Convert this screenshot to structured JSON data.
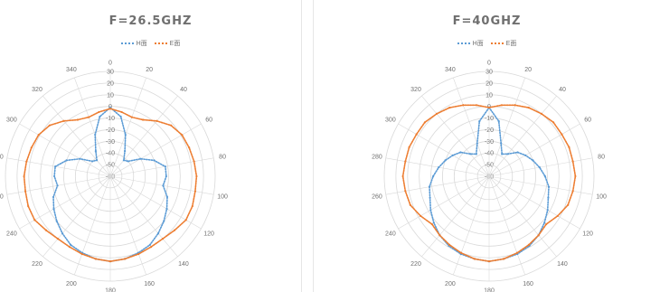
{
  "colors": {
    "h_plane": "#5b9bd5",
    "e_plane": "#ed7d31",
    "grid": "#d9d9d9",
    "text": "#707070"
  },
  "chart_data": [
    {
      "type": "polar-line",
      "title": "F=26.5GHZ",
      "legend_position": "top",
      "radial_ticks": [
        "30",
        "20",
        "10",
        "0",
        "-10",
        "-20",
        "-30",
        "-40",
        "-50",
        "-60"
      ],
      "rlim": [
        -60,
        30
      ],
      "angle_ticks": [
        "0",
        "20",
        "40",
        "60",
        "80",
        "100",
        "120",
        "140",
        "160",
        "180",
        "200",
        "220",
        "240",
        "260",
        "280",
        "300",
        "320",
        "340"
      ],
      "angles": [
        0,
        10,
        20,
        30,
        40,
        50,
        60,
        70,
        80,
        90,
        100,
        110,
        120,
        130,
        140,
        150,
        160,
        170,
        180,
        190,
        200,
        210,
        220,
        230,
        240,
        250,
        260,
        270,
        280,
        290,
        300,
        310,
        320,
        330,
        340,
        350
      ],
      "series": [
        {
          "name": "H面",
          "color": "#5b9bd5",
          "values": [
            -1,
            -8,
            -22,
            -35,
            -42,
            -40,
            -30,
            -20,
            -12,
            -12,
            -14,
            -8,
            -4,
            0,
            4,
            8,
            10,
            12,
            13,
            12,
            10,
            8,
            4,
            0,
            -4,
            -8,
            -14,
            -12,
            -12,
            -20,
            -30,
            -40,
            -42,
            -35,
            -22,
            -8
          ]
        },
        {
          "name": "E面",
          "color": "#ed7d31",
          "values": [
            -2,
            -4,
            -6,
            -4,
            2,
            8,
            11,
            12,
            13,
            14,
            14,
            15,
            15,
            12,
            10,
            10,
            11,
            12,
            13,
            12,
            11,
            10,
            10,
            12,
            15,
            15,
            14,
            14,
            13,
            12,
            11,
            8,
            2,
            -4,
            -6,
            -4
          ]
        }
      ]
    },
    {
      "type": "polar-line",
      "title": "F=40GHZ",
      "legend_position": "top",
      "radial_ticks": [
        "30",
        "20",
        "10",
        "0",
        "-10",
        "-20",
        "-30",
        "-40",
        "-50",
        "-60"
      ],
      "rlim": [
        -60,
        30
      ],
      "angle_ticks": [
        "0",
        "20",
        "40",
        "60",
        "80",
        "100",
        "120",
        "140",
        "160",
        "180",
        "200",
        "220",
        "240",
        "260",
        "280",
        "300",
        "320",
        "340"
      ],
      "angles": [
        0,
        10,
        20,
        30,
        40,
        50,
        60,
        70,
        80,
        90,
        100,
        110,
        120,
        130,
        140,
        150,
        160,
        170,
        180,
        190,
        200,
        210,
        220,
        230,
        240,
        250,
        260,
        270,
        280,
        290,
        300,
        310,
        320,
        330,
        340,
        350
      ],
      "series": [
        {
          "name": "H面",
          "color": "#5b9bd5",
          "values": [
            -1,
            -12,
            -30,
            -38,
            -35,
            -28,
            -24,
            -20,
            -16,
            -12,
            -8,
            -6,
            -2,
            2,
            6,
            9,
            11,
            12,
            13,
            12,
            11,
            9,
            6,
            2,
            -2,
            -6,
            -8,
            -12,
            -16,
            -20,
            -24,
            -28,
            -35,
            -38,
            -30,
            -12
          ]
        },
        {
          "name": "E面",
          "color": "#ed7d31",
          "values": [
            -1,
            2,
            5,
            8,
            10,
            12,
            12,
            13,
            13,
            14,
            13,
            12,
            8,
            4,
            6,
            8,
            10,
            12,
            13,
            12,
            10,
            8,
            6,
            4,
            8,
            12,
            13,
            14,
            13,
            13,
            12,
            12,
            10,
            8,
            5,
            2
          ]
        }
      ]
    }
  ]
}
